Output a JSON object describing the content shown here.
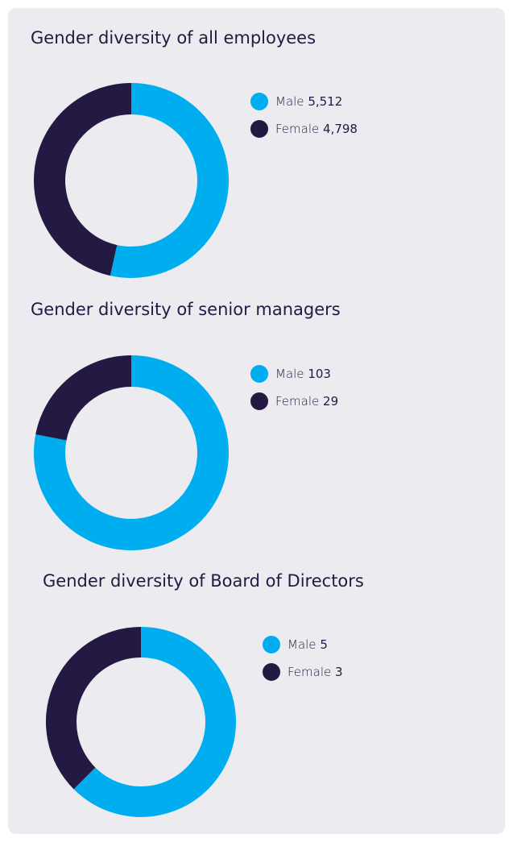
{
  "chart_data": [
    {
      "type": "donut",
      "title": "Gender diversity of all employees",
      "categories": [
        "Male",
        "Female"
      ],
      "values": [
        5512,
        4798
      ],
      "value_labels": [
        "5,512",
        "4,798"
      ],
      "colors": [
        "#00aeef",
        "#231942"
      ]
    },
    {
      "type": "donut",
      "title": "Gender diversity of senior managers",
      "categories": [
        "Male",
        "Female"
      ],
      "values": [
        103,
        29
      ],
      "colors": [
        "#00aeef",
        "#231942"
      ]
    },
    {
      "type": "donut",
      "title": "Gender diversity of Board of Directors",
      "categories": [
        "Male",
        "Female"
      ],
      "values": [
        5,
        3
      ],
      "colors": [
        "#00aeef",
        "#231942"
      ]
    }
  ]
}
